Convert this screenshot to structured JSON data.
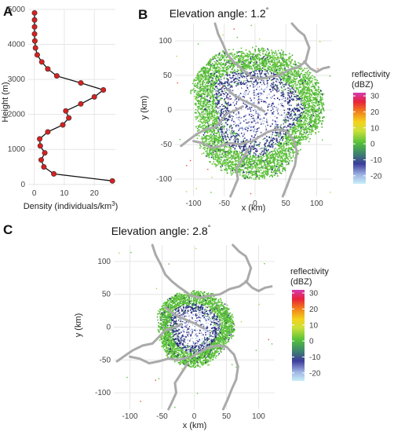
{
  "panels": {
    "a": "A",
    "b": "B",
    "c": "C"
  },
  "chart_data": [
    {
      "type": "line",
      "panel": "A",
      "xlabel": "Density (individuals/km",
      "xlabel_sup": "3",
      "xlabel_end": ")",
      "ylabel": "Height (m)",
      "xlim": [
        -2,
        27
      ],
      "ylim": [
        -50,
        5000
      ],
      "x_ticks": [
        "0",
        "10",
        "20"
      ],
      "y_ticks": [
        "0",
        "1000",
        "2000",
        "3000",
        "4000",
        "5000"
      ],
      "points": [
        {
          "height": 100,
          "density": 26
        },
        {
          "height": 300,
          "density": 6.5
        },
        {
          "height": 500,
          "density": 3.2
        },
        {
          "height": 700,
          "density": 2.3
        },
        {
          "height": 900,
          "density": 3.5
        },
        {
          "height": 1100,
          "density": 2.0
        },
        {
          "height": 1300,
          "density": 1.8
        },
        {
          "height": 1500,
          "density": 4.5
        },
        {
          "height": 1700,
          "density": 9.5
        },
        {
          "height": 1900,
          "density": 11.5
        },
        {
          "height": 2100,
          "density": 10.5
        },
        {
          "height": 2300,
          "density": 15.5
        },
        {
          "height": 2500,
          "density": 20.0
        },
        {
          "height": 2700,
          "density": 23.0
        },
        {
          "height": 2900,
          "density": 15.5
        },
        {
          "height": 3100,
          "density": 7.5
        },
        {
          "height": 3300,
          "density": 4.5
        },
        {
          "height": 3500,
          "density": 2.5
        },
        {
          "height": 3700,
          "density": 1.0
        },
        {
          "height": 3900,
          "density": 0.4
        },
        {
          "height": 4100,
          "density": 0.2
        },
        {
          "height": 4300,
          "density": 0.1
        },
        {
          "height": 4500,
          "density": 0.1
        },
        {
          "height": 4700,
          "density": 0.1
        },
        {
          "height": 4900,
          "density": 0.1
        }
      ]
    },
    {
      "type": "heatmap",
      "panel": "B",
      "title": "Elevation angle: 1.2",
      "title_sup": "°",
      "xlabel": "x (km)",
      "ylabel": "y (km)",
      "xlim": [
        -130,
        125
      ],
      "ylim": [
        -125,
        125
      ],
      "x_ticks": [
        "-100",
        "-50",
        "0",
        "50",
        "100"
      ],
      "y_ticks": [
        "-100",
        "-50",
        "0",
        "50",
        "100"
      ],
      "legend_title": [
        "reflectivity",
        "(dBZ)"
      ],
      "legend_ticks": [
        "30",
        "20",
        "10",
        "0",
        "-10",
        "-20"
      ],
      "colorscale_range": [
        -25,
        32
      ]
    },
    {
      "type": "heatmap",
      "panel": "C",
      "title": "Elevation angle: 2.8",
      "title_sup": "°",
      "xlabel": "x (km)",
      "ylabel": "y (km)",
      "xlim": [
        -125,
        125
      ],
      "ylim": [
        -125,
        125
      ],
      "x_ticks": [
        "-100",
        "-50",
        "0",
        "50",
        "100"
      ],
      "y_ticks": [
        "-100",
        "-50",
        "0",
        "50",
        "100"
      ],
      "legend_title": [
        "reflectivity",
        "(dBZ)"
      ],
      "legend_ticks": [
        "30",
        "20",
        "10",
        "0",
        "-10",
        "-20"
      ],
      "colorscale_range": [
        -25,
        32
      ]
    }
  ],
  "colors": {
    "line": "#111111",
    "marker": "#d62020",
    "grid": "#e6e6e6",
    "coast": "#aaaaaa",
    "green": "#5cc23b",
    "navy": "#2a2a7a",
    "white": "#ffffff"
  }
}
